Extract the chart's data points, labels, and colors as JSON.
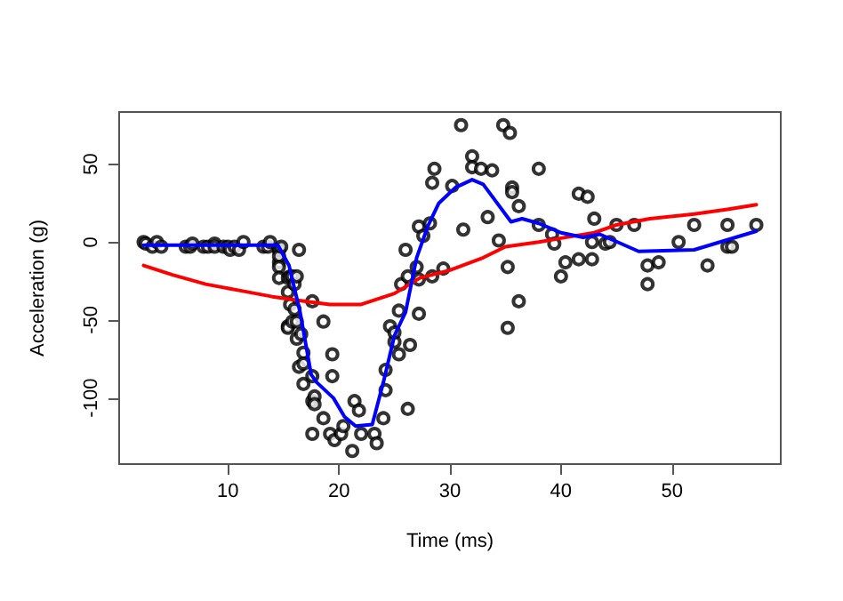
{
  "chart_data": {
    "type": "scatter",
    "xlabel": "Time (ms)",
    "ylabel": "Acceleration (g)",
    "xlim": [
      0.2,
      59.8
    ],
    "ylim": [
      -142.4,
      83.4
    ],
    "xticks": [
      10,
      20,
      30,
      40,
      50
    ],
    "yticks": [
      -100,
      -50,
      0,
      50
    ],
    "grid": false,
    "series": [
      {
        "marker": "circle",
        "color": "#000000",
        "x": [
          2.4,
          2.6,
          3.2,
          3.6,
          4.0,
          6.2,
          6.6,
          6.8,
          7.8,
          8.2,
          8.8,
          8.8,
          9.6,
          10.0,
          10.2,
          10.6,
          11.0,
          11.4,
          13.2,
          13.6,
          13.8,
          14.6,
          14.6,
          14.6,
          14.6,
          14.6,
          14.6,
          14.8,
          15.4,
          15.4,
          15.4,
          15.4,
          15.6,
          15.6,
          15.8,
          15.8,
          16.0,
          16.0,
          16.2,
          16.2,
          16.2,
          16.4,
          16.4,
          16.6,
          16.8,
          16.8,
          16.8,
          17.6,
          17.6,
          17.6,
          17.6,
          17.8,
          17.8,
          18.6,
          18.6,
          19.2,
          19.4,
          19.4,
          19.6,
          20.2,
          20.4,
          21.2,
          21.4,
          21.8,
          22.0,
          23.2,
          23.4,
          24.0,
          24.2,
          24.2,
          24.6,
          25.0,
          25.0,
          25.4,
          25.4,
          25.6,
          26.0,
          26.2,
          26.2,
          26.4,
          27.0,
          27.2,
          27.2,
          27.2,
          27.6,
          28.2,
          28.4,
          28.4,
          28.6,
          29.4,
          30.2,
          31.0,
          31.2,
          32.0,
          32.0,
          32.8,
          33.4,
          33.8,
          34.4,
          34.8,
          35.2,
          35.2,
          35.4,
          35.6,
          35.6,
          36.2,
          36.2,
          38.0,
          38.0,
          39.2,
          39.4,
          40.0,
          40.4,
          41.6,
          41.6,
          42.4,
          42.8,
          42.8,
          43.0,
          44.0,
          44.4,
          45.0,
          46.6,
          47.8,
          47.8,
          48.8,
          50.6,
          52.0,
          53.2,
          55.0,
          55.0,
          55.4,
          57.6
        ],
        "values": [
          0,
          -1,
          -3,
          0,
          -3,
          -3,
          -3,
          -1,
          -3,
          -3,
          -1,
          -3,
          -3,
          -3,
          -5,
          -3,
          -5,
          0,
          -3,
          -3,
          0,
          -13,
          -5,
          -5,
          -9,
          -16,
          -23,
          -3,
          -23,
          -32,
          -54,
          -55,
          -40,
          -22,
          -22,
          -51,
          -43,
          -27,
          -22,
          -51,
          -62,
          -5,
          -80,
          -59,
          -71,
          -91,
          -78,
          -38,
          -86,
          -123,
          -102,
          -99,
          -104,
          -113,
          -51,
          -123,
          -86,
          -72,
          -127,
          -123,
          -118,
          -134,
          -102,
          -108,
          -123,
          -123,
          -129,
          -113,
          -95,
          -82,
          -54,
          -64,
          -58,
          -72,
          -44,
          -27,
          -5,
          -107,
          -22,
          -66,
          -16,
          -46,
          -24,
          10,
          4,
          12,
          -22,
          38,
          47,
          -17,
          36,
          75,
          8,
          55,
          48,
          47,
          16,
          46,
          1,
          75,
          -16,
          -55,
          70,
          35,
          32,
          -38,
          23,
          47,
          11,
          5,
          -1,
          -22,
          -13,
          31,
          -11,
          29,
          0,
          -11,
          15,
          -1,
          0,
          11,
          11,
          -27,
          -15,
          -13,
          0,
          11,
          -15,
          -3,
          11,
          -3,
          11
        ]
      },
      {
        "type": "line",
        "marker": "none",
        "line_style": "solid",
        "color": "#ff0000",
        "x": [
          2.4,
          5,
          8,
          11,
          14,
          17,
          19.2,
          22,
          25,
          27.3,
          30,
          33,
          35,
          38,
          40,
          43,
          45,
          48,
          52,
          55,
          57.6
        ],
        "values": [
          -15,
          -21,
          -27,
          -31,
          -35,
          -38,
          -40,
          -40,
          -33,
          -23,
          -18,
          -10,
          -3,
          0,
          2.5,
          6,
          11,
          15,
          18,
          21,
          24
        ]
      },
      {
        "type": "line",
        "marker": "none",
        "line_style": "solid",
        "color": "#0000ff",
        "x": [
          2.4,
          6,
          10,
          14.5,
          15.5,
          16.5,
          17.5,
          18,
          19.5,
          20.5,
          21.5,
          23,
          24,
          25,
          26,
          27,
          28,
          29,
          30.5,
          32,
          33,
          35.5,
          36.5,
          38,
          40,
          42,
          43.5,
          47,
          52,
          57.6
        ],
        "values": [
          -2,
          -2,
          -2,
          -2,
          -15,
          -45,
          -85,
          -90,
          -100,
          -112,
          -118,
          -117,
          -90,
          -60,
          -45,
          -10,
          10,
          25,
          35,
          40,
          37,
          13,
          15,
          12,
          6,
          3,
          5,
          -6,
          -5,
          7
        ]
      }
    ]
  }
}
